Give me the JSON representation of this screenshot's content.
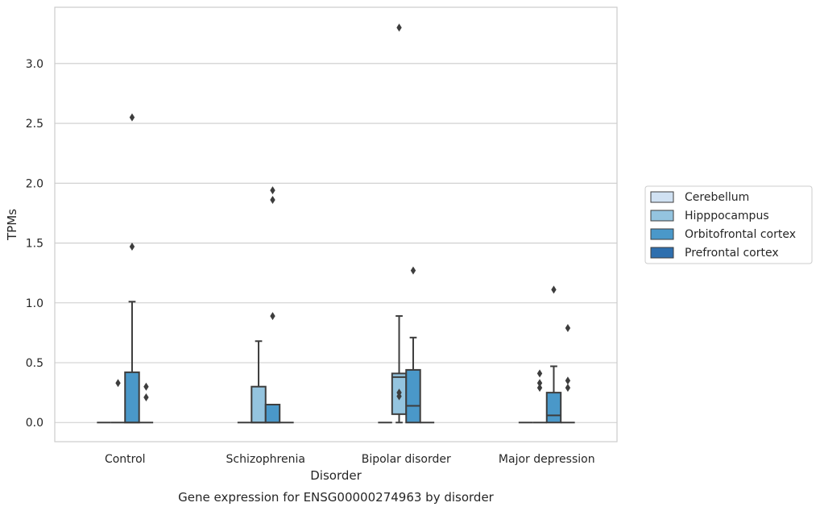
{
  "caption": "Gene expression for ENSG00000274963 by disorder",
  "chart_data": {
    "type": "box",
    "xlabel": "Disorder",
    "ylabel": "TPMs",
    "ylim": [
      -0.16,
      3.47
    ],
    "yticks": [
      0.0,
      0.5,
      1.0,
      1.5,
      2.0,
      2.5,
      3.0
    ],
    "ytick_labels": [
      "0.0",
      "0.5",
      "1.0",
      "1.5",
      "2.0",
      "2.5",
      "3.0"
    ],
    "grid": "horizontal",
    "legend_position": "right",
    "categories": [
      "Control",
      "Schizophrenia",
      "Bipolar disorder",
      "Major depression"
    ],
    "series": [
      {
        "name": "Cerebellum",
        "color": "#d0e1f2",
        "boxes": [
          {
            "category": "Control",
            "whislo": 0,
            "q1": 0,
            "med": 0,
            "q3": 0,
            "whishi": 0,
            "fliers": []
          },
          {
            "category": "Schizophrenia",
            "whislo": 0,
            "q1": 0,
            "med": 0,
            "q3": 0,
            "whishi": 0,
            "fliers": []
          },
          {
            "category": "Bipolar disorder",
            "whislo": 0,
            "q1": 0,
            "med": 0,
            "q3": 0,
            "whishi": 0,
            "fliers": []
          },
          {
            "category": "Major depression",
            "whislo": 0,
            "q1": 0,
            "med": 0,
            "q3": 0,
            "whishi": 0,
            "fliers": []
          }
        ]
      },
      {
        "name": "Hipppocampus",
        "color": "#94c4df",
        "boxes": [
          {
            "category": "Control",
            "whislo": 0,
            "q1": 0,
            "med": 0,
            "q3": 0,
            "whishi": 0,
            "fliers": [
              0.33
            ]
          },
          {
            "category": "Schizophrenia",
            "whislo": 0,
            "q1": 0,
            "med": 0,
            "q3": 0.3,
            "whishi": 0.68,
            "fliers": []
          },
          {
            "category": "Bipolar disorder",
            "whislo": 0,
            "q1": 0.07,
            "med": 0.38,
            "q3": 0.41,
            "whishi": 0.89,
            "fliers": [
              0.22,
              0.25,
              3.3
            ]
          },
          {
            "category": "Major depression",
            "whislo": 0,
            "q1": 0,
            "med": 0,
            "q3": 0,
            "whishi": 0,
            "fliers": [
              0.29,
              0.33,
              0.41
            ]
          }
        ]
      },
      {
        "name": "Orbitofrontal cortex",
        "color": "#4a98c9",
        "boxes": [
          {
            "category": "Control",
            "whislo": 0,
            "q1": 0,
            "med": 0,
            "q3": 0.42,
            "whishi": 1.01,
            "fliers": [
              1.47,
              2.55
            ]
          },
          {
            "category": "Schizophrenia",
            "whislo": 0,
            "q1": 0,
            "med": 0,
            "q3": 0.15,
            "whishi": 0.15,
            "fliers": [
              0.89,
              1.86,
              1.94
            ]
          },
          {
            "category": "Bipolar disorder",
            "whislo": 0,
            "q1": 0,
            "med": 0.14,
            "q3": 0.44,
            "whishi": 0.71,
            "fliers": [
              1.27
            ]
          },
          {
            "category": "Major depression",
            "whislo": 0,
            "q1": 0,
            "med": 0.06,
            "q3": 0.25,
            "whishi": 0.47,
            "fliers": [
              1.11
            ]
          }
        ]
      },
      {
        "name": "Prefrontal cortex",
        "color": "#2e6fae",
        "boxes": [
          {
            "category": "Control",
            "whislo": 0,
            "q1": 0,
            "med": 0,
            "q3": 0,
            "whishi": 0,
            "fliers": [
              0.21,
              0.3
            ]
          },
          {
            "category": "Schizophrenia",
            "whislo": 0,
            "q1": 0,
            "med": 0,
            "q3": 0,
            "whishi": 0,
            "fliers": []
          },
          {
            "category": "Bipolar disorder",
            "whislo": 0,
            "q1": 0,
            "med": 0,
            "q3": 0,
            "whishi": 0,
            "fliers": []
          },
          {
            "category": "Major depression",
            "whislo": 0,
            "q1": 0,
            "med": 0,
            "q3": 0,
            "whishi": 0,
            "fliers": [
              0.29,
              0.35,
              0.79
            ]
          }
        ]
      }
    ]
  }
}
